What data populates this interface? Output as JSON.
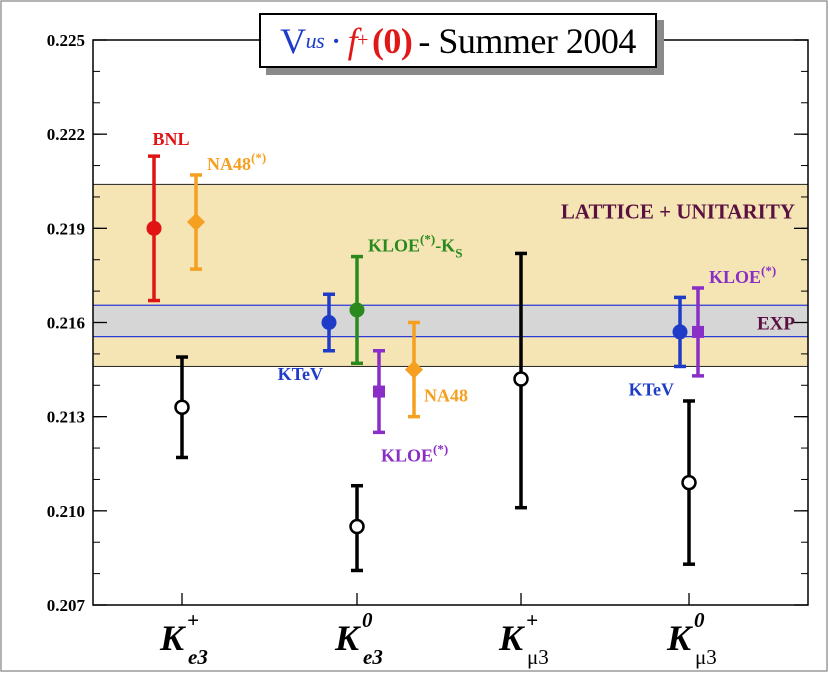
{
  "chart_data": {
    "type": "scatter",
    "title_parts": {
      "v": "V",
      "us": "us",
      "dot": "·",
      "f": "f",
      "plus": "+",
      "zero": "(0)",
      "rest": "- Summer 2004"
    },
    "ylim": [
      0.207,
      0.225
    ],
    "yticks": [
      "0.207",
      "0.210",
      "0.213",
      "0.216",
      "0.219",
      "0.222",
      "0.225"
    ],
    "categories": [
      {
        "base": "K",
        "sup": "+",
        "sub": "e3"
      },
      {
        "base": "K",
        "sup": "0",
        "sub": "e3"
      },
      {
        "base": "K",
        "sup": "+",
        "sub": "μ3"
      },
      {
        "base": "K",
        "sup": "0",
        "sub": "μ3"
      }
    ],
    "bands": [
      {
        "name": "LATTICE + UNITARITY",
        "low": 0.2146,
        "high": 0.2204,
        "fill": "#f5e4b4",
        "line": "#222222"
      },
      {
        "name": "EXP",
        "low": 0.21555,
        "high": 0.21655,
        "fill": "#d6d6d6",
        "line": "#2b3bd6"
      }
    ],
    "series": [
      {
        "label": "BNL",
        "sup": "",
        "cat": 0,
        "offset": -0.28,
        "y": 0.219,
        "lo": 0.2167,
        "hi": 0.2213,
        "color": "#e01414",
        "marker": "circle",
        "label_pos": "above"
      },
      {
        "label": "NA48",
        "sup": "(*)",
        "cat": 0,
        "offset": 0.14,
        "y": 0.2192,
        "lo": 0.2177,
        "hi": 0.2207,
        "color": "#f5a020",
        "marker": "diamond",
        "label_pos": "above-right"
      },
      {
        "label": "",
        "sup": "",
        "cat": 0,
        "offset": 0.0,
        "y": 0.2133,
        "lo": 0.2117,
        "hi": 0.2149,
        "color": "#000000",
        "marker": "open-circle",
        "label_pos": "none"
      },
      {
        "label": "KTeV",
        "sup": "",
        "cat": 1,
        "offset": -0.28,
        "y": 0.216,
        "lo": 0.2151,
        "hi": 0.2169,
        "color": "#1f3cc8",
        "marker": "circle",
        "label_pos": "below-left"
      },
      {
        "label": "KLOE",
        "sup": "(*)",
        "sub": "S",
        "mid": "-K",
        "cat": 1,
        "offset": 0.0,
        "y": 0.2164,
        "lo": 0.2147,
        "hi": 0.2181,
        "color": "#2a8a1e",
        "marker": "circle",
        "label_pos": "above-right"
      },
      {
        "label": "",
        "sup": "",
        "cat": 1,
        "offset": 0.0,
        "y": 0.2095,
        "lo": 0.2081,
        "hi": 0.2108,
        "color": "#000000",
        "marker": "open-circle",
        "label_pos": "none"
      },
      {
        "label": "KLOE",
        "sup": "(*)",
        "cat": 1,
        "offset": 0.22,
        "y": 0.2138,
        "lo": 0.2125,
        "hi": 0.2151,
        "color": "#8a2ec8",
        "marker": "square",
        "label_pos": "below"
      },
      {
        "label": "NA48",
        "sup": "",
        "cat": 1,
        "offset": 0.57,
        "y": 0.2145,
        "lo": 0.213,
        "hi": 0.216,
        "color": "#f5a020",
        "marker": "diamond",
        "label_pos": "right"
      },
      {
        "label": "",
        "sup": "",
        "cat": 2,
        "offset": 0.0,
        "y": 0.2142,
        "lo": 0.2101,
        "hi": 0.2182,
        "color": "#000000",
        "marker": "open-circle",
        "label_pos": "none"
      },
      {
        "label": "KTeV",
        "sup": "",
        "cat": 3,
        "offset": -0.09,
        "y": 0.2157,
        "lo": 0.2146,
        "hi": 0.2168,
        "color": "#1f3cc8",
        "marker": "circle",
        "label_pos": "below-left"
      },
      {
        "label": "KLOE",
        "sup": "(*)",
        "cat": 3,
        "offset": 0.09,
        "y": 0.2157,
        "lo": 0.2143,
        "hi": 0.2171,
        "color": "#8a2ec8",
        "marker": "square",
        "label_pos": "above-right"
      },
      {
        "label": "",
        "sup": "",
        "cat": 3,
        "offset": 0.0,
        "y": 0.2109,
        "lo": 0.2083,
        "hi": 0.2135,
        "color": "#000000",
        "marker": "open-circle",
        "label_pos": "none"
      }
    ],
    "band_labels": [
      {
        "text": "LATTICE + UNITARITY",
        "color": "#5a1040",
        "anchor": "lattice"
      },
      {
        "text": "EXP",
        "color": "#5a1040",
        "anchor": "exp"
      }
    ]
  }
}
